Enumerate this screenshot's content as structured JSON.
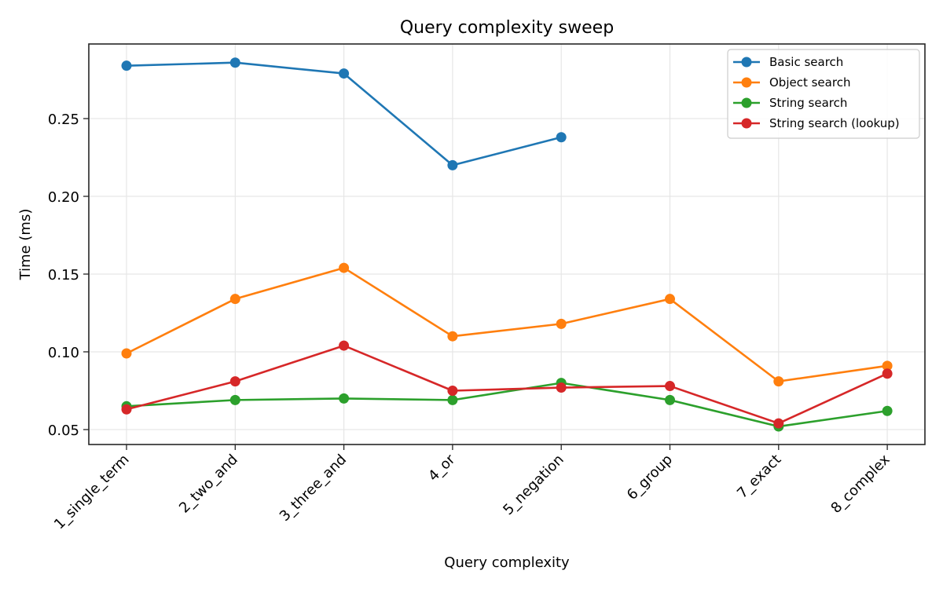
{
  "chart_data": {
    "type": "line",
    "title": "Query complexity sweep",
    "xlabel": "Query complexity",
    "ylabel": "Time (ms)",
    "categories": [
      "1_single_term",
      "2_two_and",
      "3_three_and",
      "4_or",
      "5_negation",
      "6_group",
      "7_exact",
      "8_complex"
    ],
    "ylim": [
      0.041,
      0.298
    ],
    "yticks": [
      0.05,
      0.1,
      0.15,
      0.2,
      0.25
    ],
    "ytick_labels": [
      "0.05",
      "0.10",
      "0.15",
      "0.20",
      "0.25"
    ],
    "grid": true,
    "legend_position": "upper right",
    "series": [
      {
        "name": "Basic search",
        "color": "#1f77b4",
        "values": [
          0.284,
          0.286,
          0.279,
          0.22,
          0.238,
          null,
          null,
          null
        ]
      },
      {
        "name": "Object search",
        "color": "#ff7f0e",
        "values": [
          0.099,
          0.134,
          0.154,
          0.11,
          0.118,
          0.134,
          0.081,
          0.091
        ]
      },
      {
        "name": "String search",
        "color": "#2ca02c",
        "values": [
          0.065,
          0.069,
          0.07,
          0.069,
          0.08,
          0.069,
          0.052,
          0.062
        ]
      },
      {
        "name": "String search (lookup)",
        "color": "#d62728",
        "values": [
          0.063,
          0.081,
          0.104,
          0.075,
          0.077,
          0.078,
          0.054,
          0.086
        ]
      }
    ]
  }
}
